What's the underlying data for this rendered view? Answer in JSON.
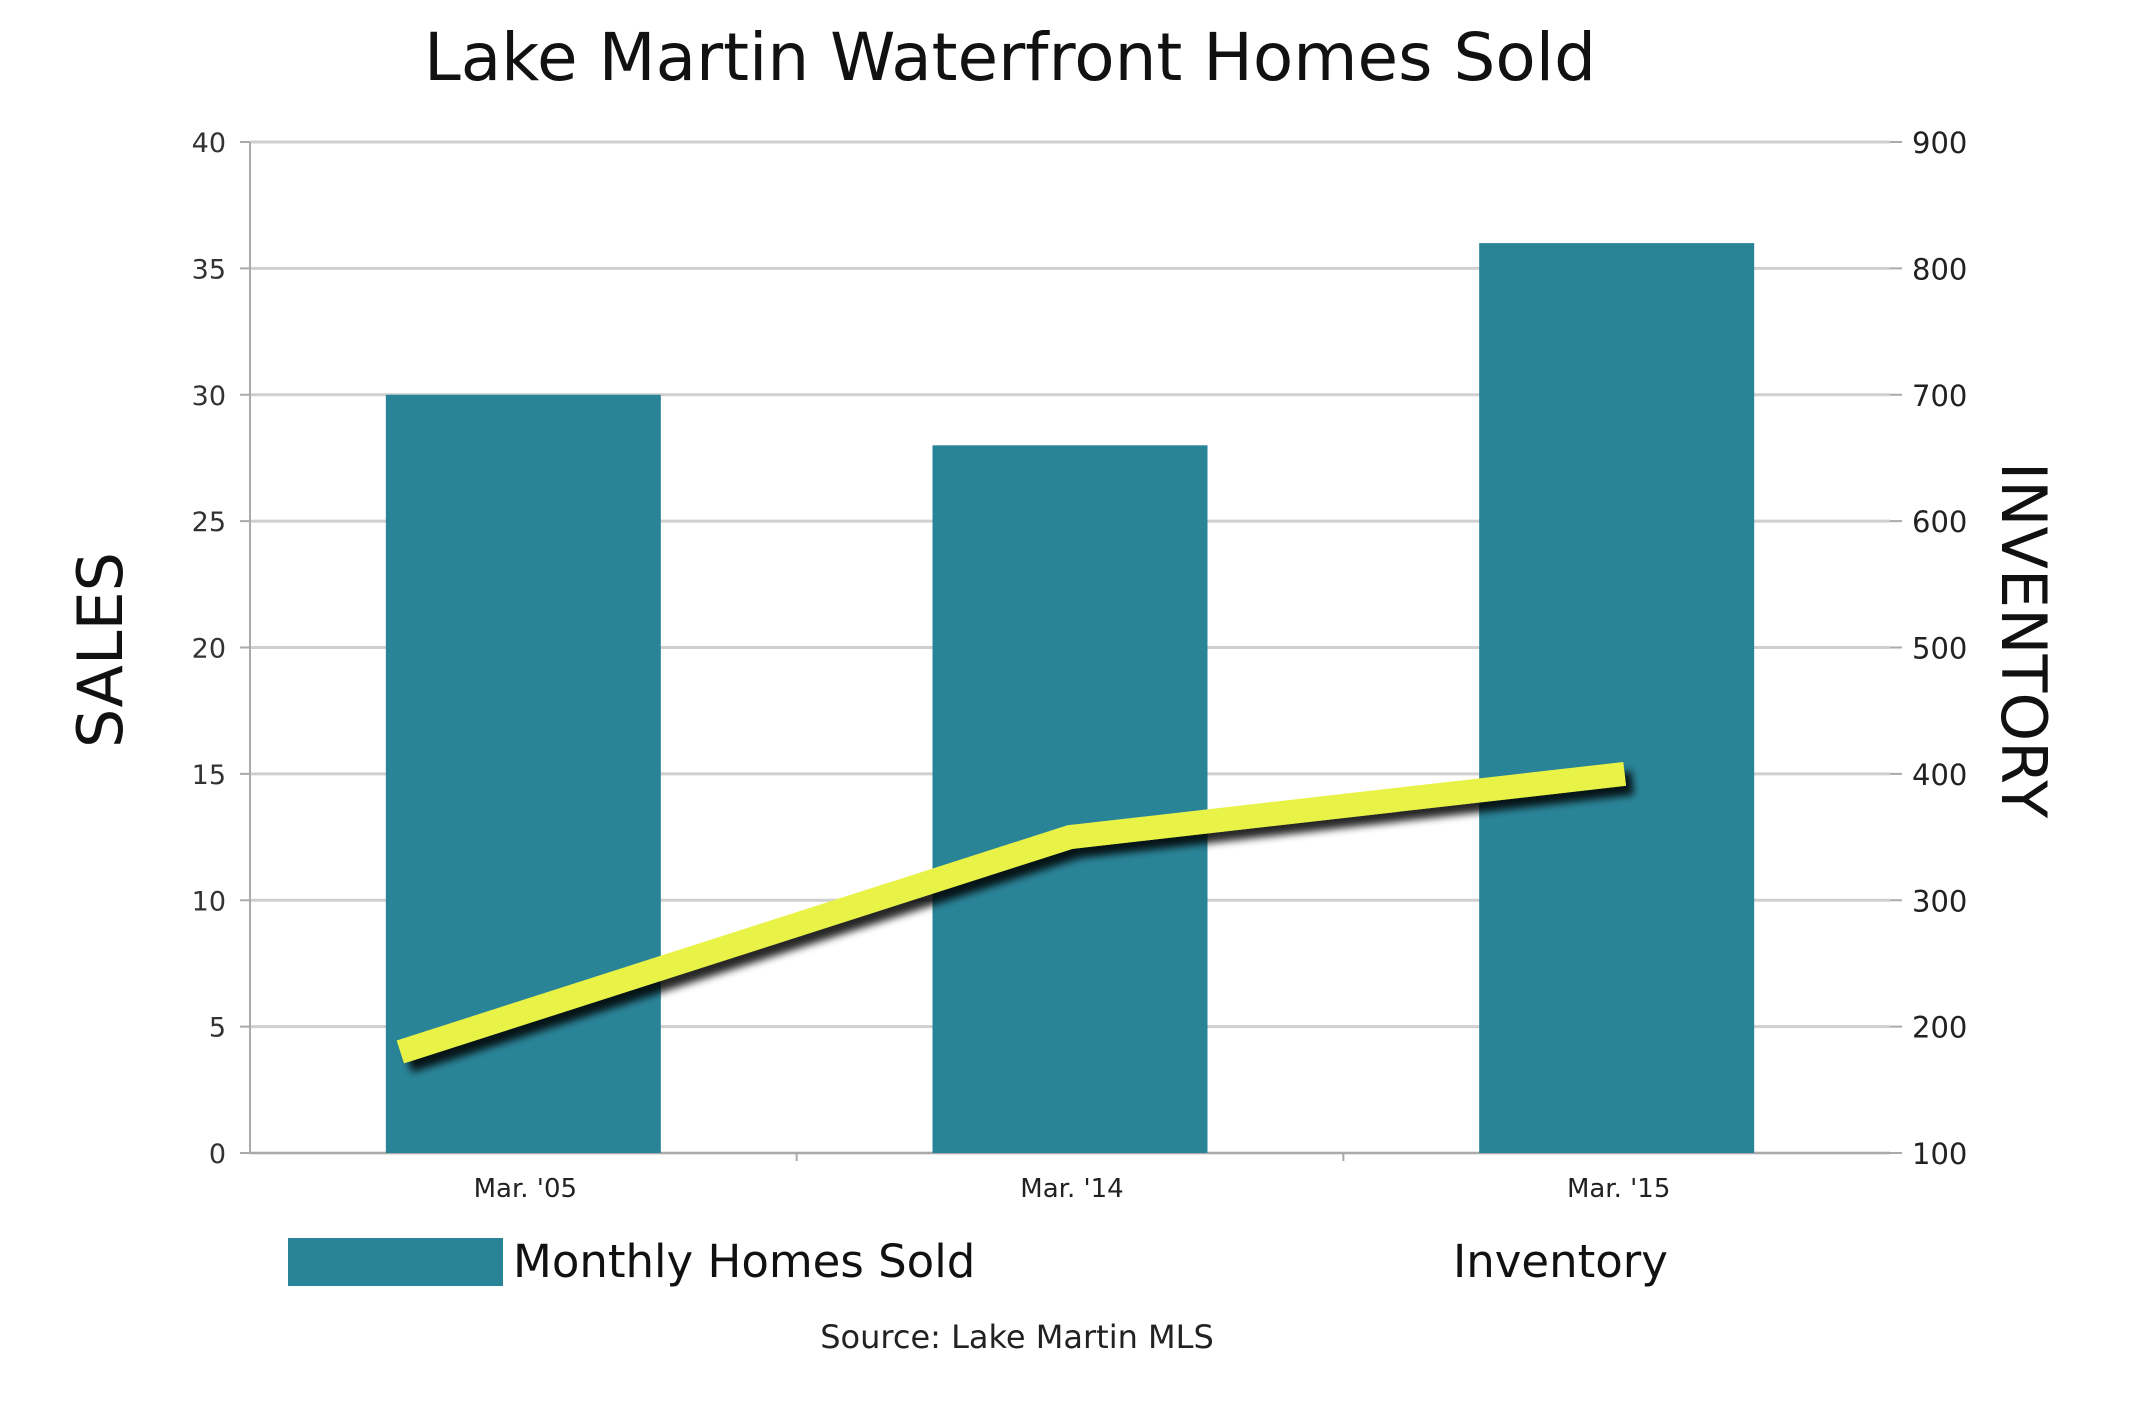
{
  "colors": {
    "bar": "#2a8498",
    "line": "#e9f347",
    "line_shadow": "#000000",
    "grid": "#cfcfcf",
    "axis": "#aaaaaa"
  },
  "chart_data": {
    "type": "bar",
    "title": "Lake Martin Waterfront Homes Sold",
    "categories": [
      "Mar. '05",
      "Mar. '14",
      "Mar. '15"
    ],
    "series": [
      {
        "name": "Monthly Homes Sold",
        "type": "bar",
        "axis": "left",
        "values": [
          30,
          28,
          36
        ]
      },
      {
        "name": "Inventory",
        "type": "line",
        "axis": "right",
        "values": [
          180,
          350,
          400
        ]
      }
    ],
    "ylabel": "SALES",
    "y2label": "INVENTORY",
    "ylim": [
      0,
      40
    ],
    "y2lim": [
      100,
      900
    ],
    "yticks": [
      "0",
      "5",
      "10",
      "15",
      "20",
      "25",
      "30",
      "35",
      "40"
    ],
    "y2ticks": [
      "100",
      "200",
      "300",
      "400",
      "500",
      "600",
      "700",
      "800",
      "900"
    ],
    "grid": true,
    "legend": "bottom",
    "source": "Source: Lake Martin MLS"
  }
}
